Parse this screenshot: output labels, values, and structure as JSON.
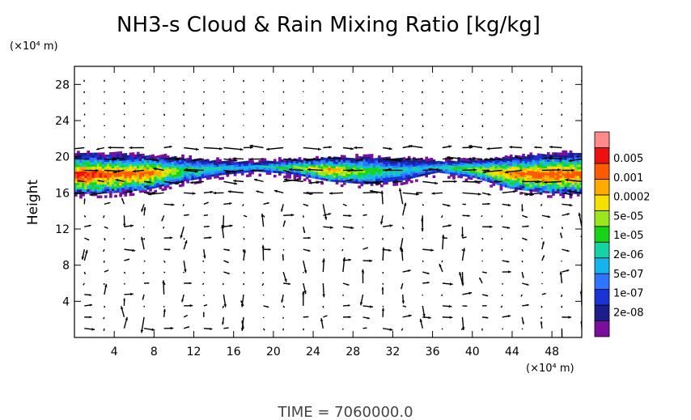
{
  "chart_data": {
    "type": "heatmap",
    "title": "NH3-s Cloud & Rain Mixing Ratio [kg/kg]",
    "ylabel": "Height",
    "y_unit": "(×10⁴ m)",
    "x_unit": "(×10⁴ m)",
    "x_ticks": [
      "4",
      "8",
      "12",
      "16",
      "20",
      "24",
      "28",
      "32",
      "36",
      "40",
      "44",
      "48"
    ],
    "y_ticks": [
      "4",
      "8",
      "12",
      "16",
      "20",
      "24",
      "28"
    ],
    "xlim": [
      0,
      51
    ],
    "ylim": [
      0,
      30
    ],
    "grid": false,
    "colorbar": {
      "labels": [
        "0.005",
        "0.001",
        "0.0002",
        "5e-05",
        "1e-05",
        "2e-06",
        "5e-07",
        "1e-07",
        "2e-08"
      ],
      "colors": [
        "#7a0f9e",
        "#1c1c8a",
        "#1a33d6",
        "#2f74ff",
        "#15b4ee",
        "#16d3a6",
        "#17d417",
        "#9be81a",
        "#f5e000",
        "#ffaa00",
        "#ff5a00",
        "#ee1010",
        "#ff8a8a"
      ]
    },
    "cloud_layer": {
      "top_height": [
        20.2,
        20.1,
        20.0,
        19.7,
        19.4,
        19.3,
        19.5,
        19.7,
        19.8,
        19.6,
        19.4,
        19.5,
        19.8,
        20.1,
        20.3
      ],
      "bottom_height": [
        15.8,
        15.9,
        16.3,
        17.2,
        17.9,
        18.3,
        18.0,
        17.2,
        16.9,
        17.3,
        18.2,
        17.6,
        16.4,
        15.9,
        15.8
      ],
      "intensity": [
        3.6,
        3.4,
        3.2,
        1.4,
        0.8,
        0.6,
        1.6,
        3.0,
        1.6,
        0.7,
        0.8,
        1.8,
        3.0,
        3.4,
        3.3
      ]
    },
    "vectors": "wind field arrows"
  },
  "time_label": "TIME = 7060000.0"
}
